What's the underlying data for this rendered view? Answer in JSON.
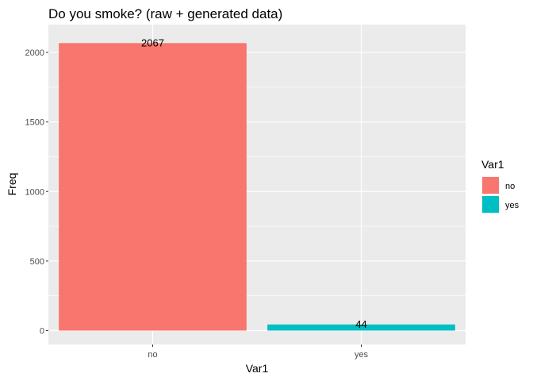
{
  "chart_data": {
    "type": "bar",
    "title": "Do you smoke? (raw + generated data)",
    "xlabel": "Var1",
    "ylabel": "Freq",
    "categories": [
      "no",
      "yes"
    ],
    "values": [
      2067,
      44
    ],
    "data_labels": [
      "2067",
      "44"
    ],
    "colors": [
      "#F8766D",
      "#00BFC4"
    ],
    "ylim": [
      -100,
      2200
    ],
    "yticks": [
      0,
      500,
      1000,
      1500,
      2000
    ],
    "ytick_labels": [
      "0",
      "500",
      "1000",
      "1500",
      "2000"
    ],
    "grid": true,
    "panel_background": "#EBEBEB",
    "legend": {
      "title": "Var1",
      "position": "right",
      "entries": [
        {
          "label": "no",
          "color": "#F8766D"
        },
        {
          "label": "yes",
          "color": "#00BFC4"
        }
      ]
    }
  }
}
